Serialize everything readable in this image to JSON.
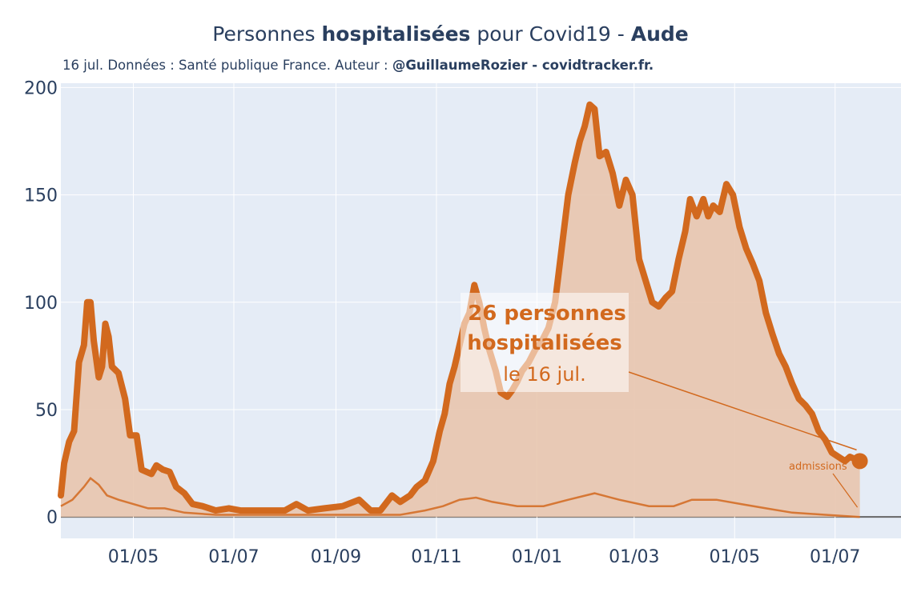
{
  "title": {
    "prefix": "Personnes ",
    "bold": "hospitalisées",
    "middle": " pour Covid19 - ",
    "region": "Aude"
  },
  "subtitle": {
    "text": "16 jul. Données : Santé publique France. Auteur : ",
    "bold": "@GuillaumeRozier - covidtracker.fr."
  },
  "annotation": {
    "line1": "26 personnes",
    "line2": "hospitalisées",
    "line3": "le 16 jul."
  },
  "admissions_label": "admissions",
  "colors": {
    "hosp_line": "#d2691e",
    "hosp_fill": "#e8c5ae",
    "admissions": "#d2691e",
    "plot_bg": "#e5ecf6",
    "grid": "#ffffff",
    "axis_text": "#2a3f5f"
  },
  "chart_data": {
    "type": "line",
    "x_range": [
      "2020-03-18",
      "2021-08-10"
    ],
    "y_range": [
      -10,
      202
    ],
    "y_ticks": [
      0,
      50,
      100,
      150,
      200
    ],
    "x_ticks": [
      {
        "date": "2020-05-01",
        "label": "01/05"
      },
      {
        "date": "2020-07-01",
        "label": "01/07"
      },
      {
        "date": "2020-09-01",
        "label": "01/09"
      },
      {
        "date": "2020-11-01",
        "label": "01/11"
      },
      {
        "date": "2021-01-01",
        "label": "01/01"
      },
      {
        "date": "2021-03-01",
        "label": "01/03"
      },
      {
        "date": "2021-05-01",
        "label": "01/05"
      },
      {
        "date": "2021-07-01",
        "label": "01/07"
      }
    ],
    "grid": true,
    "series": [
      {
        "key": "hospitalisations",
        "style": "area-line",
        "points": [
          [
            "2020-03-18",
            10
          ],
          [
            "2020-03-20",
            25
          ],
          [
            "2020-03-23",
            35
          ],
          [
            "2020-03-26",
            40
          ],
          [
            "2020-03-29",
            72
          ],
          [
            "2020-04-01",
            80
          ],
          [
            "2020-04-03",
            100
          ],
          [
            "2020-04-05",
            100
          ],
          [
            "2020-04-07",
            82
          ],
          [
            "2020-04-10",
            65
          ],
          [
            "2020-04-12",
            70
          ],
          [
            "2020-04-14",
            90
          ],
          [
            "2020-04-16",
            84
          ],
          [
            "2020-04-18",
            70
          ],
          [
            "2020-04-22",
            67
          ],
          [
            "2020-04-26",
            55
          ],
          [
            "2020-04-29",
            38
          ],
          [
            "2020-05-03",
            38
          ],
          [
            "2020-05-06",
            22
          ],
          [
            "2020-05-12",
            20
          ],
          [
            "2020-05-15",
            24
          ],
          [
            "2020-05-19",
            22
          ],
          [
            "2020-05-23",
            21
          ],
          [
            "2020-05-27",
            14
          ],
          [
            "2020-06-01",
            11
          ],
          [
            "2020-06-06",
            6
          ],
          [
            "2020-06-12",
            5
          ],
          [
            "2020-06-20",
            3
          ],
          [
            "2020-06-28",
            4
          ],
          [
            "2020-07-05",
            3
          ],
          [
            "2020-07-20",
            3
          ],
          [
            "2020-08-01",
            3
          ],
          [
            "2020-08-08",
            6
          ],
          [
            "2020-08-15",
            3
          ],
          [
            "2020-08-25",
            4
          ],
          [
            "2020-09-05",
            5
          ],
          [
            "2020-09-15",
            8
          ],
          [
            "2020-09-22",
            3
          ],
          [
            "2020-09-28",
            3
          ],
          [
            "2020-10-05",
            10
          ],
          [
            "2020-10-10",
            7
          ],
          [
            "2020-10-16",
            10
          ],
          [
            "2020-10-20",
            14
          ],
          [
            "2020-10-25",
            17
          ],
          [
            "2020-10-30",
            26
          ],
          [
            "2020-11-03",
            40
          ],
          [
            "2020-11-06",
            48
          ],
          [
            "2020-11-09",
            62
          ],
          [
            "2020-11-12",
            70
          ],
          [
            "2020-11-15",
            80
          ],
          [
            "2020-11-18",
            90
          ],
          [
            "2020-11-21",
            95
          ],
          [
            "2020-11-24",
            108
          ],
          [
            "2020-11-27",
            100
          ],
          [
            "2020-11-30",
            88
          ],
          [
            "2020-12-03",
            78
          ],
          [
            "2020-12-07",
            68
          ],
          [
            "2020-12-10",
            58
          ],
          [
            "2020-12-14",
            56
          ],
          [
            "2020-12-17",
            59
          ],
          [
            "2020-12-20",
            63
          ],
          [
            "2020-12-23",
            68
          ],
          [
            "2020-12-27",
            72
          ],
          [
            "2020-12-31",
            78
          ],
          [
            "2021-01-04",
            82
          ],
          [
            "2021-01-08",
            88
          ],
          [
            "2021-01-12",
            100
          ],
          [
            "2021-01-16",
            125
          ],
          [
            "2021-01-20",
            150
          ],
          [
            "2021-01-24",
            165
          ],
          [
            "2021-01-27",
            175
          ],
          [
            "2021-01-30",
            182
          ],
          [
            "2021-02-02",
            192
          ],
          [
            "2021-02-05",
            190
          ],
          [
            "2021-02-08",
            168
          ],
          [
            "2021-02-12",
            170
          ],
          [
            "2021-02-16",
            160
          ],
          [
            "2021-02-20",
            145
          ],
          [
            "2021-02-24",
            157
          ],
          [
            "2021-02-28",
            150
          ],
          [
            "2021-03-04",
            120
          ],
          [
            "2021-03-08",
            110
          ],
          [
            "2021-03-12",
            100
          ],
          [
            "2021-03-16",
            98
          ],
          [
            "2021-03-20",
            102
          ],
          [
            "2021-03-24",
            105
          ],
          [
            "2021-03-28",
            120
          ],
          [
            "2021-04-01",
            133
          ],
          [
            "2021-04-04",
            148
          ],
          [
            "2021-04-08",
            140
          ],
          [
            "2021-04-12",
            148
          ],
          [
            "2021-04-15",
            140
          ],
          [
            "2021-04-18",
            145
          ],
          [
            "2021-04-22",
            142
          ],
          [
            "2021-04-26",
            155
          ],
          [
            "2021-04-30",
            150
          ],
          [
            "2021-05-04",
            135
          ],
          [
            "2021-05-08",
            125
          ],
          [
            "2021-05-12",
            118
          ],
          [
            "2021-05-16",
            110
          ],
          [
            "2021-05-20",
            95
          ],
          [
            "2021-05-24",
            85
          ],
          [
            "2021-05-28",
            76
          ],
          [
            "2021-06-01",
            70
          ],
          [
            "2021-06-05",
            62
          ],
          [
            "2021-06-09",
            55
          ],
          [
            "2021-06-13",
            52
          ],
          [
            "2021-06-17",
            48
          ],
          [
            "2021-06-21",
            40
          ],
          [
            "2021-06-25",
            36
          ],
          [
            "2021-06-29",
            30
          ],
          [
            "2021-07-03",
            28
          ],
          [
            "2021-07-07",
            26
          ],
          [
            "2021-07-10",
            28
          ],
          [
            "2021-07-13",
            27
          ],
          [
            "2021-07-16",
            26
          ]
        ]
      },
      {
        "key": "admissions",
        "style": "line",
        "points": [
          [
            "2020-03-18",
            5
          ],
          [
            "2020-03-25",
            8
          ],
          [
            "2020-04-01",
            14
          ],
          [
            "2020-04-05",
            18
          ],
          [
            "2020-04-10",
            15
          ],
          [
            "2020-04-15",
            10
          ],
          [
            "2020-04-22",
            8
          ],
          [
            "2020-05-01",
            6
          ],
          [
            "2020-05-10",
            4
          ],
          [
            "2020-05-20",
            4
          ],
          [
            "2020-06-01",
            2
          ],
          [
            "2020-06-20",
            1
          ],
          [
            "2020-08-01",
            1
          ],
          [
            "2020-09-15",
            1
          ],
          [
            "2020-10-10",
            1
          ],
          [
            "2020-10-25",
            3
          ],
          [
            "2020-11-05",
            5
          ],
          [
            "2020-11-15",
            8
          ],
          [
            "2020-11-25",
            9
          ],
          [
            "2020-12-05",
            7
          ],
          [
            "2020-12-20",
            5
          ],
          [
            "2021-01-05",
            5
          ],
          [
            "2021-01-20",
            8
          ],
          [
            "2021-02-05",
            11
          ],
          [
            "2021-02-20",
            8
          ],
          [
            "2021-03-10",
            5
          ],
          [
            "2021-03-25",
            5
          ],
          [
            "2021-04-05",
            8
          ],
          [
            "2021-04-20",
            8
          ],
          [
            "2021-05-05",
            6
          ],
          [
            "2021-05-20",
            4
          ],
          [
            "2021-06-05",
            2
          ],
          [
            "2021-06-25",
            1
          ],
          [
            "2021-07-16",
            0
          ]
        ]
      }
    ],
    "last_point": {
      "date": "2021-07-16",
      "value": 26
    }
  }
}
